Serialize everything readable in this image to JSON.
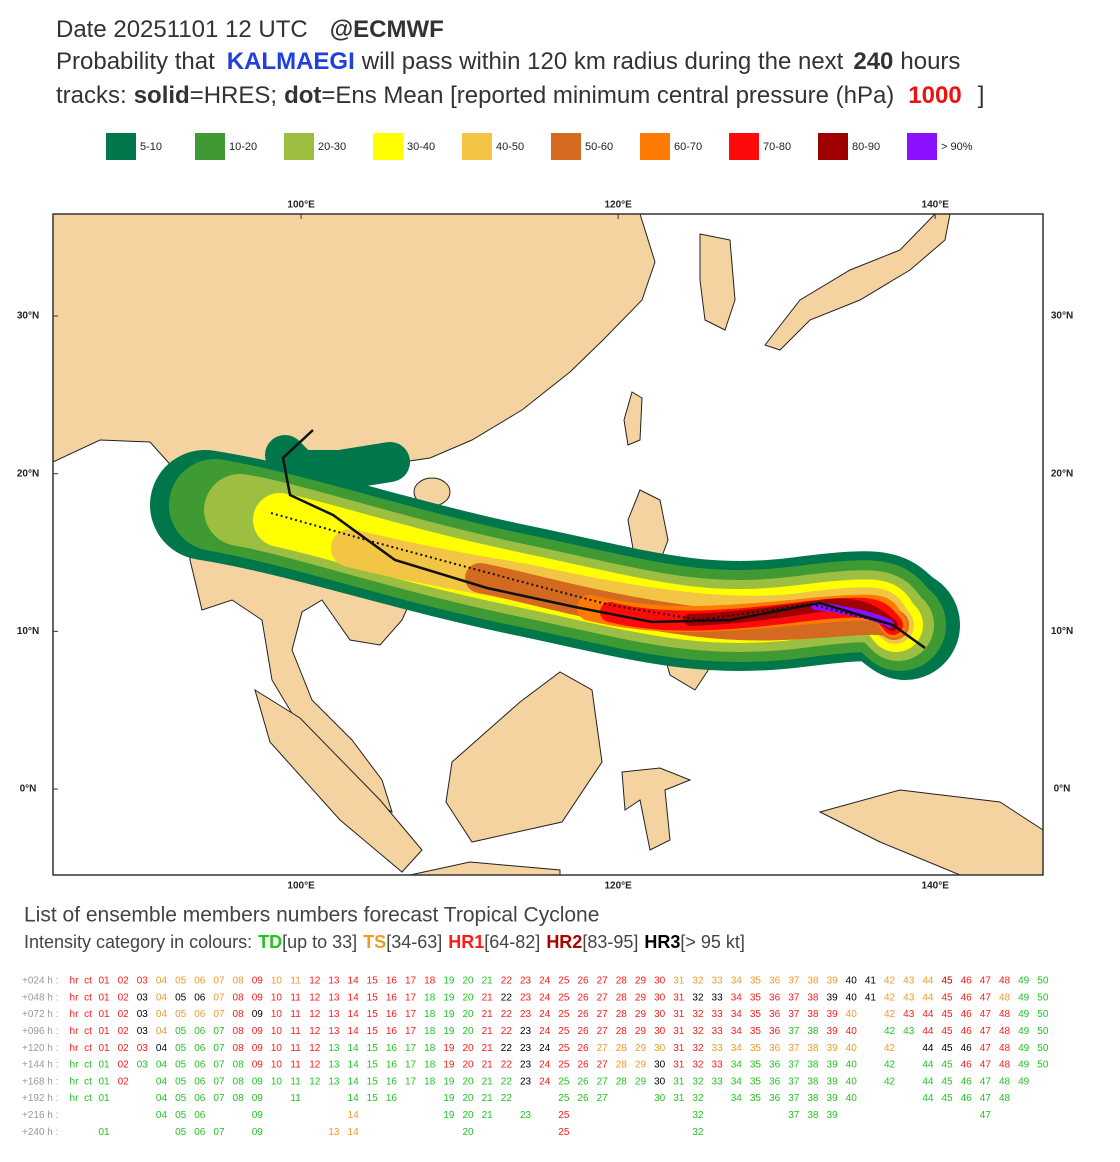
{
  "header": {
    "date": "Date 20251101 12 UTC",
    "source": "@ECMWF",
    "prob": [
      "Probability that",
      "KALMAEGI",
      "will pass within 120 km radius during the next",
      "240",
      "hours"
    ],
    "tracks": [
      "tracks:",
      "solid",
      "=HRES;",
      "dot",
      "=Ens Mean [reported minimum central pressure (hPa)",
      "1000",
      "]"
    ]
  },
  "legend": {
    "labels": [
      "5-10",
      "10-20",
      "20-30",
      "30-40",
      "40-50",
      "50-60",
      "60-70",
      "70-80",
      "80-90",
      "> 90%"
    ],
    "colors": [
      "#00774a",
      "#3f9a34",
      "#9cbf42",
      "#ffff00",
      "#f3c545",
      "#d46a20",
      "#ff7a00",
      "#ff0a0a",
      "#9e0000",
      "#8b10ff"
    ]
  },
  "map": {
    "lonlim": [
      84.35,
      146.8
    ],
    "latlim": [
      -5.45,
      36.47
    ],
    "lon_ticks": [
      {
        "value": 100,
        "label": "100°E"
      },
      {
        "value": 120,
        "label": "120°E"
      },
      {
        "value": 140,
        "label": "140°E"
      }
    ],
    "lat_ticks": [
      {
        "value": 30,
        "label": "30°N"
      },
      {
        "value": 20,
        "label": "20°N"
      },
      {
        "value": 10,
        "label": "10°N"
      },
      {
        "value": 0,
        "label": "0°N"
      }
    ]
  },
  "ensemble": {
    "title": "List of ensemble members numbers forecast Tropical Cyclone",
    "intensity_prefix": "Intensity category in colours:",
    "categories": [
      {
        "name": "TD",
        "range": "[up to 33]",
        "color": "#22c422"
      },
      {
        "name": "TS",
        "range": "[34-63]",
        "color": "#f09a2a"
      },
      {
        "name": "HR1",
        "range": "[64-82]",
        "color": "#ff1a1a"
      },
      {
        "name": "HR2",
        "range": "[83-95]",
        "color": "#b00000"
      },
      {
        "name": "HR3",
        "range": "[> 95 kt]",
        "color": "#000000"
      }
    ],
    "rows": [
      {
        "lead": "+024 h :",
        "members": [
          "hr",
          "ct",
          "01",
          "02",
          "03",
          "04",
          "05",
          "06",
          "07",
          "08",
          "09",
          "10",
          "11",
          "12",
          "13",
          "14",
          "15",
          "16",
          "17",
          "18",
          "19",
          "20",
          "21",
          "22",
          "23",
          "24",
          "25",
          "26",
          "27",
          "28",
          "29",
          "30",
          "31",
          "32",
          "33",
          "34",
          "35",
          "36",
          "37",
          "38",
          "39",
          "40",
          "41",
          "42",
          "43",
          "44",
          "45",
          "46",
          "47",
          "48",
          "49",
          "50"
        ],
        "categories": [
          2,
          2,
          2,
          2,
          2,
          1,
          1,
          1,
          1,
          1,
          2,
          1,
          1,
          2,
          2,
          2,
          2,
          2,
          2,
          2,
          0,
          0,
          0,
          2,
          2,
          2,
          2,
          2,
          2,
          2,
          2,
          2,
          1,
          1,
          1,
          1,
          1,
          1,
          1,
          1,
          1,
          4,
          4,
          1,
          1,
          1,
          3,
          2,
          2,
          2,
          0,
          0
        ]
      },
      {
        "lead": "+048 h :",
        "members": [
          "hr",
          "ct",
          "01",
          "02",
          "03",
          "04",
          "05",
          "06",
          "07",
          "08",
          "09",
          "10",
          "11",
          "12",
          "13",
          "14",
          "15",
          "16",
          "17",
          "18",
          "19",
          "20",
          "21",
          "22",
          "23",
          "24",
          "25",
          "26",
          "27",
          "28",
          "29",
          "30",
          "31",
          "32",
          "33",
          "34",
          "35",
          "36",
          "37",
          "38",
          "39",
          "40",
          "41",
          "42",
          "43",
          "44",
          "45",
          "46",
          "47",
          "48",
          "49",
          "50"
        ],
        "categories": [
          2,
          2,
          2,
          2,
          4,
          1,
          4,
          4,
          1,
          2,
          2,
          2,
          2,
          2,
          2,
          2,
          2,
          2,
          2,
          0,
          0,
          0,
          2,
          4,
          2,
          2,
          2,
          2,
          2,
          2,
          2,
          2,
          2,
          4,
          4,
          2,
          2,
          2,
          2,
          2,
          4,
          4,
          4,
          1,
          1,
          1,
          2,
          2,
          2,
          1,
          0,
          0
        ]
      },
      {
        "lead": "+072 h :",
        "members": [
          "hr",
          "ct",
          "01",
          "02",
          "03",
          "04",
          "05",
          "06",
          "07",
          "08",
          "09",
          "10",
          "11",
          "12",
          "13",
          "14",
          "15",
          "16",
          "17",
          "18",
          "19",
          "20",
          "21",
          "22",
          "23",
          "24",
          "25",
          "26",
          "27",
          "28",
          "29",
          "30",
          "31",
          "32",
          "33",
          "34",
          "35",
          "36",
          "37",
          "38",
          "39",
          "40",
          null,
          "42",
          "43",
          "44",
          "45",
          "46",
          "47",
          "48",
          "49",
          "50"
        ],
        "categories": [
          2,
          2,
          2,
          2,
          4,
          1,
          1,
          1,
          1,
          2,
          4,
          2,
          2,
          2,
          2,
          2,
          2,
          2,
          2,
          0,
          0,
          0,
          2,
          2,
          2,
          2,
          2,
          2,
          2,
          2,
          2,
          2,
          2,
          2,
          2,
          2,
          2,
          2,
          2,
          2,
          2,
          1,
          null,
          1,
          2,
          2,
          2,
          2,
          2,
          2,
          0,
          0
        ]
      },
      {
        "lead": "+096 h :",
        "members": [
          "hr",
          "ct",
          "01",
          "02",
          "03",
          "04",
          "05",
          "06",
          "07",
          "08",
          "09",
          "10",
          "11",
          "12",
          "13",
          "14",
          "15",
          "16",
          "17",
          "18",
          "19",
          "20",
          "21",
          "22",
          "23",
          "24",
          "25",
          "26",
          "27",
          "28",
          "29",
          "30",
          "31",
          "32",
          "33",
          "34",
          "35",
          "36",
          "37",
          "38",
          "39",
          "40",
          null,
          "42",
          "43",
          "44",
          "45",
          "46",
          "47",
          "48",
          "49",
          "50"
        ],
        "categories": [
          2,
          2,
          2,
          2,
          4,
          1,
          0,
          0,
          0,
          2,
          2,
          2,
          2,
          2,
          2,
          2,
          2,
          2,
          2,
          0,
          0,
          0,
          2,
          2,
          4,
          2,
          2,
          2,
          2,
          2,
          2,
          2,
          2,
          2,
          2,
          2,
          2,
          2,
          0,
          0,
          2,
          2,
          null,
          0,
          0,
          2,
          2,
          2,
          2,
          2,
          0,
          0
        ]
      },
      {
        "lead": "+120 h :",
        "members": [
          "hr",
          "ct",
          "01",
          "02",
          "03",
          "04",
          "05",
          "06",
          "07",
          "08",
          "09",
          "10",
          "11",
          "12",
          "13",
          "14",
          "15",
          "16",
          "17",
          "18",
          "19",
          "20",
          "21",
          "22",
          "23",
          "24",
          "25",
          "26",
          "27",
          "28",
          "29",
          "30",
          "31",
          "32",
          "33",
          "34",
          "35",
          "36",
          "37",
          "38",
          "39",
          "40",
          null,
          "42",
          null,
          "44",
          "45",
          "46",
          "47",
          "48",
          "49",
          "50"
        ],
        "categories": [
          2,
          2,
          2,
          2,
          2,
          4,
          0,
          0,
          0,
          2,
          2,
          2,
          2,
          2,
          0,
          0,
          0,
          0,
          0,
          0,
          2,
          2,
          2,
          4,
          4,
          4,
          2,
          2,
          1,
          1,
          1,
          1,
          2,
          2,
          1,
          1,
          1,
          1,
          1,
          1,
          1,
          1,
          null,
          1,
          null,
          4,
          4,
          4,
          2,
          2,
          0,
          0
        ]
      },
      {
        "lead": "+144 h :",
        "members": [
          "hr",
          "ct",
          "01",
          "02",
          "03",
          "04",
          "05",
          "06",
          "07",
          "08",
          "09",
          "10",
          "11",
          "12",
          "13",
          "14",
          "15",
          "16",
          "17",
          "18",
          "19",
          "20",
          "21",
          "22",
          "23",
          "24",
          "25",
          "26",
          "27",
          "28",
          "29",
          "30",
          "31",
          "32",
          "33",
          "34",
          "35",
          "36",
          "37",
          "38",
          "39",
          "40",
          null,
          "42",
          null,
          "44",
          "45",
          "46",
          "47",
          "48",
          "49",
          "50"
        ],
        "categories": [
          0,
          0,
          0,
          2,
          0,
          0,
          0,
          0,
          0,
          0,
          2,
          2,
          2,
          2,
          0,
          0,
          0,
          0,
          0,
          0,
          2,
          2,
          2,
          2,
          4,
          2,
          2,
          2,
          2,
          1,
          1,
          4,
          2,
          2,
          2,
          0,
          0,
          0,
          0,
          0,
          0,
          0,
          null,
          0,
          null,
          0,
          0,
          2,
          2,
          2,
          0,
          0
        ]
      },
      {
        "lead": "+168 h :",
        "members": [
          "hr",
          "ct",
          "01",
          "02",
          null,
          "04",
          "05",
          "06",
          "07",
          "08",
          "09",
          "10",
          "11",
          "12",
          "13",
          "14",
          "15",
          "16",
          "17",
          "18",
          "19",
          "20",
          "21",
          "22",
          "23",
          "24",
          "25",
          "26",
          "27",
          "28",
          "29",
          "30",
          "31",
          "32",
          "33",
          "34",
          "35",
          "36",
          "37",
          "38",
          "39",
          "40",
          null,
          "42",
          null,
          "44",
          "45",
          "46",
          "47",
          "48",
          "49",
          null
        ],
        "categories": [
          0,
          0,
          0,
          2,
          null,
          0,
          0,
          0,
          0,
          0,
          0,
          0,
          0,
          0,
          0,
          0,
          0,
          0,
          0,
          0,
          0,
          0,
          0,
          0,
          4,
          2,
          0,
          0,
          0,
          0,
          0,
          4,
          0,
          0,
          0,
          0,
          0,
          0,
          0,
          0,
          0,
          0,
          null,
          0,
          null,
          0,
          0,
          0,
          0,
          0,
          0,
          null
        ]
      },
      {
        "lead": "+192 h :",
        "members": [
          "hr",
          "ct",
          "01",
          null,
          null,
          "04",
          "05",
          "06",
          "07",
          "08",
          "09",
          null,
          "11",
          null,
          null,
          "14",
          "15",
          "16",
          null,
          null,
          "19",
          "20",
          "21",
          "22",
          null,
          null,
          "25",
          "26",
          "27",
          null,
          null,
          "30",
          "31",
          "32",
          null,
          "34",
          "35",
          "36",
          "37",
          "38",
          "39",
          "40",
          null,
          null,
          null,
          "44",
          "45",
          "46",
          "47",
          "48",
          null,
          null
        ],
        "categories": [
          0,
          0,
          0,
          null,
          null,
          0,
          0,
          0,
          0,
          0,
          0,
          null,
          0,
          null,
          null,
          0,
          0,
          0,
          null,
          null,
          0,
          0,
          0,
          0,
          null,
          null,
          0,
          0,
          0,
          null,
          null,
          0,
          0,
          0,
          null,
          0,
          0,
          0,
          0,
          0,
          0,
          0,
          null,
          null,
          null,
          0,
          0,
          0,
          0,
          0,
          null,
          null
        ]
      },
      {
        "lead": "+216 h :",
        "members": [
          null,
          null,
          null,
          null,
          null,
          "04",
          "05",
          "06",
          null,
          null,
          "09",
          null,
          null,
          null,
          null,
          "14",
          null,
          null,
          null,
          null,
          "19",
          "20",
          "21",
          null,
          "23",
          null,
          "25",
          null,
          null,
          null,
          null,
          null,
          null,
          "32",
          null,
          null,
          null,
          null,
          "37",
          "38",
          "39",
          null,
          null,
          null,
          null,
          null,
          null,
          null,
          "47",
          null,
          null,
          null
        ],
        "categories": [
          null,
          null,
          null,
          null,
          null,
          0,
          0,
          0,
          null,
          null,
          0,
          null,
          null,
          null,
          null,
          1,
          null,
          null,
          null,
          null,
          0,
          0,
          0,
          null,
          0,
          null,
          2,
          null,
          null,
          null,
          null,
          null,
          null,
          0,
          null,
          null,
          null,
          null,
          0,
          0,
          0,
          null,
          null,
          null,
          null,
          null,
          null,
          null,
          0,
          null,
          null,
          null
        ]
      },
      {
        "lead": "+240 h :",
        "members": [
          null,
          null,
          "01",
          null,
          null,
          null,
          "05",
          "06",
          "07",
          null,
          "09",
          null,
          null,
          null,
          "13",
          "14",
          null,
          null,
          null,
          null,
          null,
          "20",
          null,
          null,
          null,
          null,
          "25",
          null,
          null,
          null,
          null,
          null,
          null,
          "32",
          null,
          null,
          null,
          null,
          null,
          null,
          null,
          null,
          null,
          null,
          null,
          null,
          null,
          null,
          null,
          null,
          null,
          null
        ],
        "categories": [
          null,
          null,
          0,
          null,
          null,
          null,
          0,
          0,
          0,
          null,
          0,
          null,
          null,
          null,
          1,
          1,
          null,
          null,
          null,
          null,
          null,
          0,
          null,
          null,
          null,
          null,
          2,
          null,
          null,
          null,
          null,
          null,
          null,
          0,
          null,
          null,
          null,
          null,
          null,
          null,
          null,
          null,
          null,
          null,
          null,
          null,
          null,
          null,
          null,
          null,
          null,
          null
        ]
      }
    ]
  }
}
